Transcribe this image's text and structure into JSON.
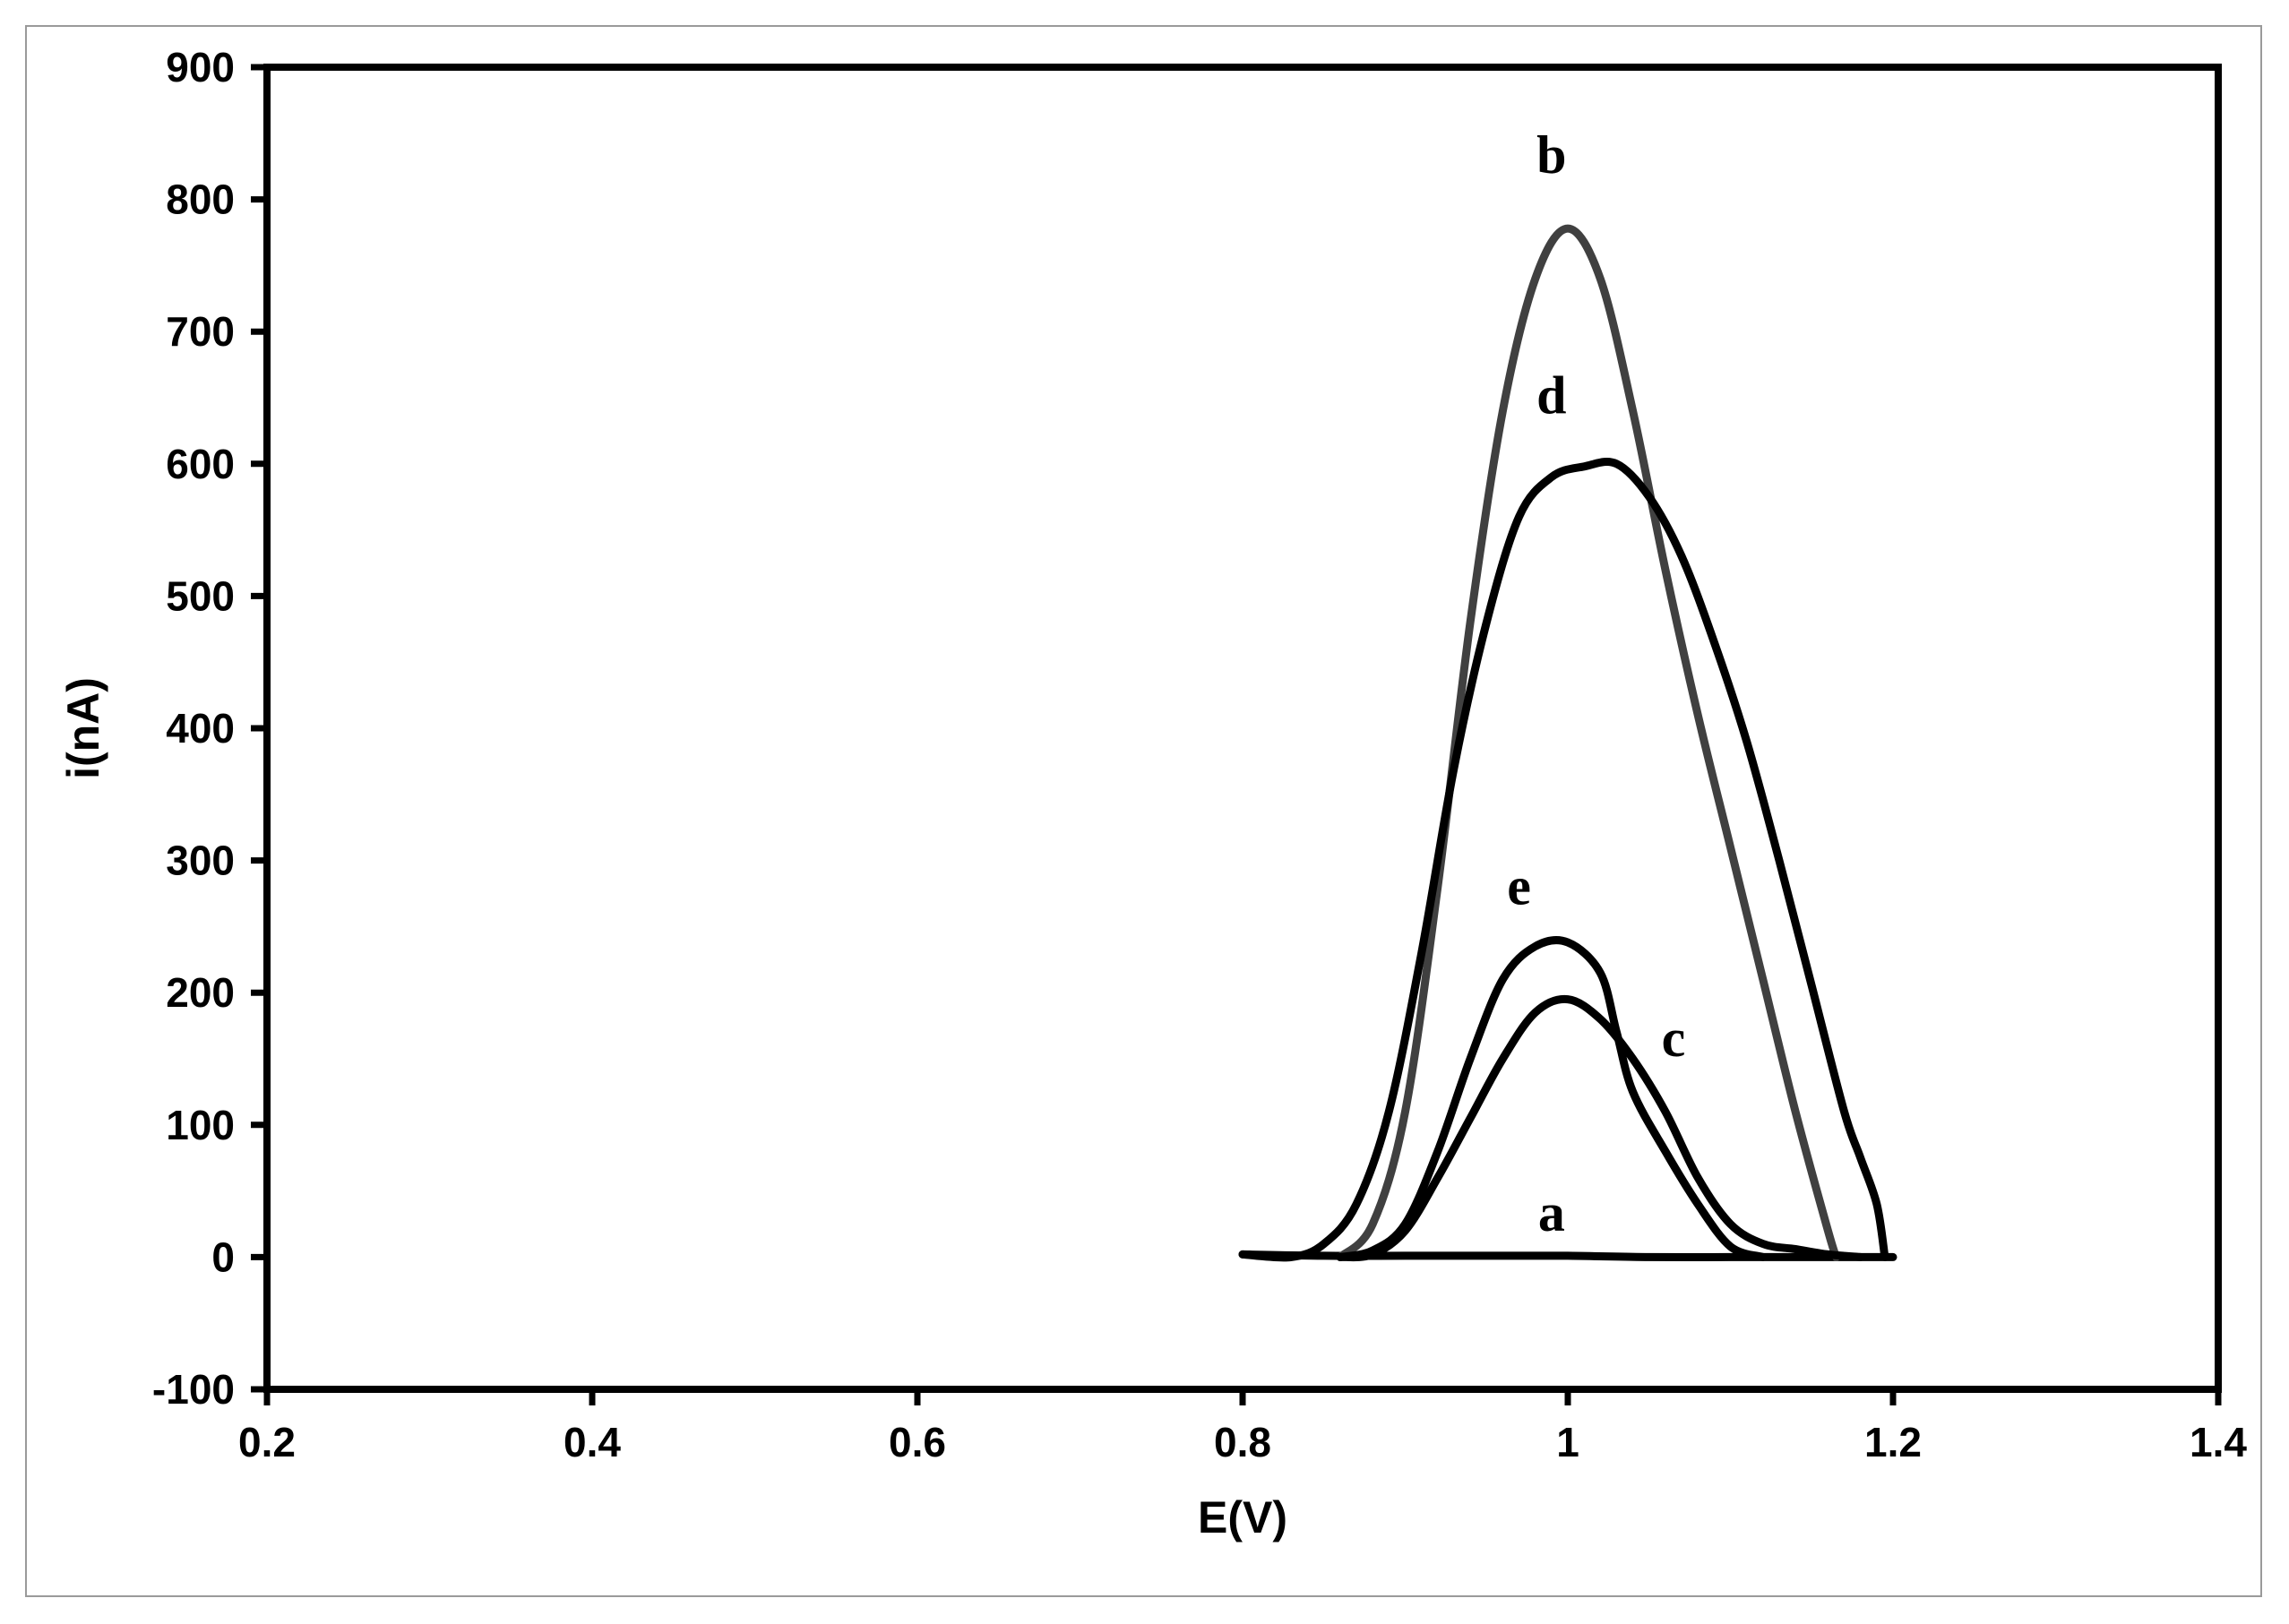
{
  "chart_data": {
    "type": "line",
    "title": "",
    "xlabel": "E(V)",
    "ylabel": "i(nA)",
    "xlim": [
      0.2,
      1.4
    ],
    "ylim": [
      -100,
      900
    ],
    "x_ticks": [
      0.2,
      0.4,
      0.6,
      0.8,
      1,
      1.2,
      1.4
    ],
    "x_tick_labels": [
      "0.2",
      "0.4",
      "0.6",
      "0.8",
      "1",
      "1.2",
      "1.4"
    ],
    "y_ticks": [
      -100,
      0,
      100,
      200,
      300,
      400,
      500,
      600,
      700,
      800,
      900
    ],
    "y_tick_labels": [
      "-100",
      "0",
      "100",
      "200",
      "300",
      "400",
      "500",
      "600",
      "700",
      "800",
      "900"
    ],
    "grid": false,
    "legend": "none",
    "series": [
      {
        "label": "a",
        "label_at": [
          0.99,
          20
        ],
        "color": "#000000",
        "points": [
          [
            0.8,
            2
          ],
          [
            0.85,
            1
          ],
          [
            0.9,
            1
          ],
          [
            0.95,
            1
          ],
          [
            1.0,
            1
          ],
          [
            1.05,
            0
          ],
          [
            1.1,
            0
          ],
          [
            1.15,
            0
          ],
          [
            1.2,
            0
          ]
        ]
      },
      {
        "label": "b",
        "label_at": [
          0.99,
          820
        ],
        "color": "#404040",
        "points": [
          [
            0.86,
            0
          ],
          [
            0.88,
            25
          ],
          [
            0.9,
            110
          ],
          [
            0.92,
            280
          ],
          [
            0.94,
            480
          ],
          [
            0.96,
            640
          ],
          [
            0.98,
            740
          ],
          [
            1.0,
            778
          ],
          [
            1.02,
            740
          ],
          [
            1.04,
            640
          ],
          [
            1.06,
            520
          ],
          [
            1.08,
            410
          ],
          [
            1.1,
            310
          ],
          [
            1.12,
            210
          ],
          [
            1.14,
            110
          ],
          [
            1.16,
            20
          ],
          [
            1.165,
            0
          ]
        ]
      },
      {
        "label": "c",
        "label_at": [
          1.065,
          152
        ],
        "color": "#000000",
        "points": [
          [
            0.86,
            0
          ],
          [
            0.88,
            2
          ],
          [
            0.9,
            20
          ],
          [
            0.92,
            60
          ],
          [
            0.94,
            105
          ],
          [
            0.96,
            150
          ],
          [
            0.98,
            185
          ],
          [
            1.0,
            195
          ],
          [
            1.02,
            180
          ],
          [
            1.04,
            150
          ],
          [
            1.06,
            110
          ],
          [
            1.08,
            60
          ],
          [
            1.1,
            25
          ],
          [
            1.12,
            10
          ],
          [
            1.14,
            6
          ],
          [
            1.16,
            2
          ],
          [
            1.18,
            0
          ]
        ]
      },
      {
        "label": "d",
        "label_at": [
          0.99,
          638
        ],
        "color": "#000000",
        "points": [
          [
            0.8,
            2
          ],
          [
            0.83,
            0
          ],
          [
            0.85,
            10
          ],
          [
            0.87,
            40
          ],
          [
            0.89,
            110
          ],
          [
            0.91,
            230
          ],
          [
            0.93,
            370
          ],
          [
            0.95,
            480
          ],
          [
            0.97,
            560
          ],
          [
            0.99,
            590
          ],
          [
            1.01,
            598
          ],
          [
            1.03,
            600
          ],
          [
            1.05,
            575
          ],
          [
            1.07,
            530
          ],
          [
            1.09,
            465
          ],
          [
            1.11,
            390
          ],
          [
            1.13,
            300
          ],
          [
            1.15,
            205
          ],
          [
            1.17,
            110
          ],
          [
            1.18,
            75
          ],
          [
            1.19,
            40
          ],
          [
            1.195,
            0
          ]
        ]
      },
      {
        "label": "e",
        "label_at": [
          0.97,
          267
        ],
        "color": "#000000",
        "points": [
          [
            0.86,
            0
          ],
          [
            0.88,
            5
          ],
          [
            0.9,
            25
          ],
          [
            0.92,
            80
          ],
          [
            0.94,
            150
          ],
          [
            0.96,
            210
          ],
          [
            0.98,
            235
          ],
          [
            1.0,
            238
          ],
          [
            1.02,
            215
          ],
          [
            1.03,
            170
          ],
          [
            1.04,
            125
          ],
          [
            1.06,
            80
          ],
          [
            1.08,
            40
          ],
          [
            1.1,
            8
          ],
          [
            1.12,
            0
          ]
        ]
      }
    ]
  }
}
